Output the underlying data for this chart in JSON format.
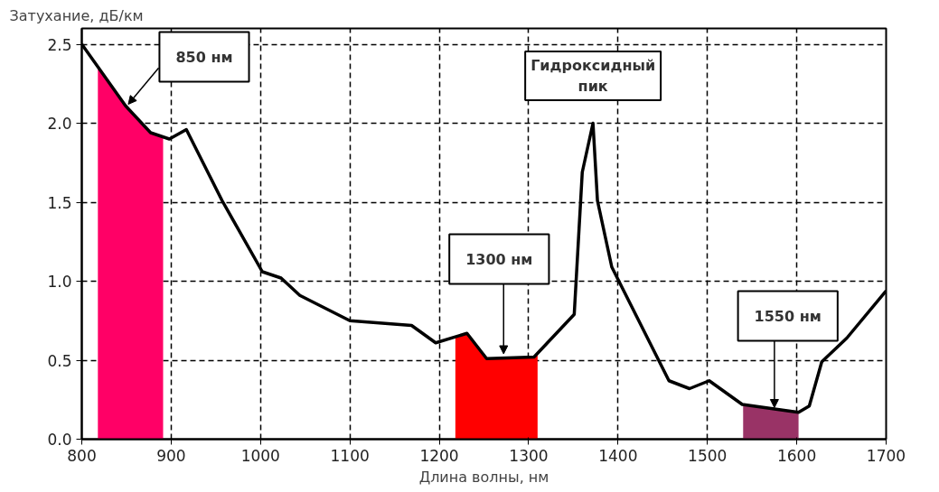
{
  "chart_data": {
    "type": "line",
    "ylabel": "Затухание, дБ/км",
    "xlabel": "Длина волны, нм",
    "x": [
      800,
      849,
      877,
      898,
      917,
      957,
      1002,
      1023,
      1044,
      1100,
      1169,
      1196,
      1231,
      1253,
      1306,
      1351,
      1360,
      1372,
      1377,
      1393,
      1457,
      1480,
      1502,
      1539,
      1602,
      1614,
      1628,
      1656,
      1700
    ],
    "series": [
      {
        "type": "area",
        "color": "#ff0066",
        "x": [
          818,
          849,
          877,
          891
        ],
        "values": [
          2.36,
          2.11,
          1.94,
          1.92
        ]
      },
      {
        "type": "area",
        "color": "#ff0000",
        "x": [
          1218,
          1231,
          1253,
          1306,
          1310
        ],
        "values": [
          0.64,
          0.67,
          0.51,
          0.52,
          0.54
        ]
      },
      {
        "type": "area",
        "color": "#993366",
        "x": [
          1540,
          1602
        ],
        "values": [
          0.22,
          0.17
        ]
      },
      {
        "color": "#000000",
        "values": [
          2.5,
          2.11,
          1.94,
          1.9,
          1.96,
          1.51,
          1.06,
          1.02,
          0.91,
          0.75,
          0.72,
          0.61,
          0.67,
          0.51,
          0.52,
          0.79,
          1.69,
          2.0,
          1.51,
          1.09,
          0.37,
          0.32,
          0.37,
          0.22,
          0.17,
          0.21,
          0.49,
          0.64,
          0.94
        ]
      }
    ],
    "xlim": [
      800,
      1700
    ],
    "ylim": [
      0,
      2.6
    ],
    "xticks": [
      800,
      900,
      1000,
      1100,
      1200,
      1300,
      1400,
      1500,
      1600,
      1700
    ],
    "yticks": [
      {
        "value": 0,
        "label": "0.0"
      },
      {
        "value": 0.5,
        "label": "0.5"
      },
      {
        "value": 1,
        "label": "1.0"
      },
      {
        "value": 1.5,
        "label": "1.5"
      },
      {
        "value": 2,
        "label": "2.0"
      },
      {
        "value": 2.5,
        "label": "2.5"
      }
    ],
    "annotations": [
      {
        "text": "850 нм",
        "x": 852,
        "y": 2.1
      },
      {
        "text": "1300 нм",
        "x": 1272,
        "y": 0.52
      },
      {
        "text": "Гидроксидный\nпик",
        "x": 1372,
        "y": 2.0
      },
      {
        "text": "1550 нм",
        "x": 1575,
        "y": 0.18
      }
    ],
    "grid": true,
    "line_style": "solid",
    "marker": "none"
  }
}
